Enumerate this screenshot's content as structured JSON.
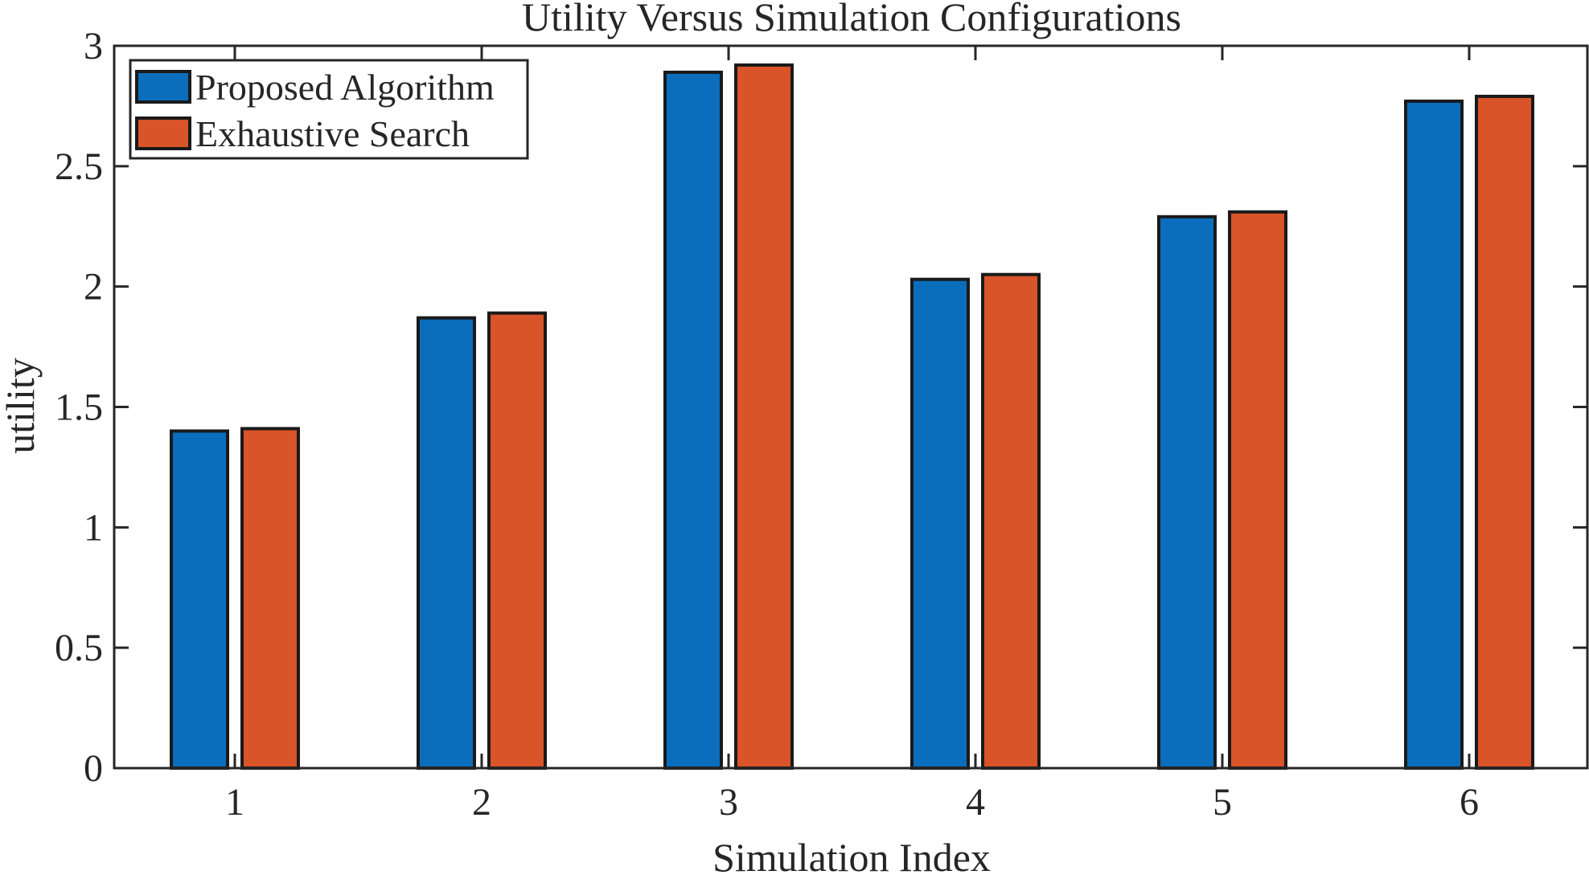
{
  "chart_data": {
    "type": "bar",
    "title": "Utility Versus Simulation Configurations",
    "xlabel": "Simulation Index",
    "ylabel": "utility",
    "categories": [
      "1",
      "2",
      "3",
      "4",
      "5",
      "6"
    ],
    "series": [
      {
        "name": "Proposed Algorithm",
        "color": "#0a6ebd",
        "values": [
          1.4,
          1.87,
          2.89,
          2.03,
          2.29,
          2.77
        ]
      },
      {
        "name": "Exhaustive Search",
        "color": "#d95428",
        "values": [
          1.41,
          1.89,
          2.92,
          2.05,
          2.31,
          2.79
        ]
      }
    ],
    "ylim": [
      0,
      3
    ],
    "yticks": [
      0,
      0.5,
      1,
      1.5,
      2,
      2.5,
      3
    ],
    "ytick_labels": [
      "0",
      "0.5",
      "1",
      "1.5",
      "2",
      "2.5",
      "3"
    ],
    "legend_position": "top-left",
    "grid": false
  }
}
